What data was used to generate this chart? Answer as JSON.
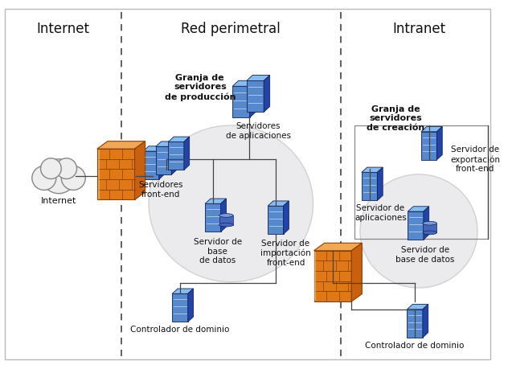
{
  "title_internet": "Internet",
  "title_perimetral": "Red perimetral",
  "title_intranet": "Intranet",
  "bg_color": "#ffffff",
  "dashed_line_color": "#666666",
  "labels": {
    "internet_cloud": "Internet",
    "farm_prod": "Granja de\nservidores\nde producción",
    "app_servers": "Servidores\nde aplicaciones",
    "frontend_servers": "Servidores\nfront-end",
    "db_server": "Servidor de\nbase\nde datos",
    "import_server": "Servidor de\nimportación\nfront-end",
    "domain_ctrl_left": "Controlador de dominio",
    "farm_creation": "Granja de\nservidores\nde creación",
    "export_server": "Servidor de\nexportación\nfront-end",
    "app_server_right": "Servidor de\naplicaciones",
    "db_server_right": "Servidor de\nbase de datos",
    "domain_ctrl_right": "Controlador de dominio"
  },
  "colors": {
    "firewall_front": "#E07818",
    "firewall_top": "#F0A855",
    "firewall_side": "#C86010",
    "firewall_line": "#8B4000",
    "server_front": "#5588CC",
    "server_front2": "#4466BB",
    "server_top": "#88BBEE",
    "server_top2": "#AADDFF",
    "server_side": "#2244AA",
    "server_side2": "#1133AA",
    "db_body": "#4466BB",
    "db_top": "#7799DD",
    "line_color": "#444444",
    "ellipse_fill": "#E8E8EC",
    "cloud_fill": "#EEEEEE",
    "cloud_edge": "#888888",
    "box_edge": "#888888"
  },
  "zone_dividers": [
    155,
    435
  ],
  "figsize": [
    6.32,
    4.6
  ],
  "dpi": 100
}
